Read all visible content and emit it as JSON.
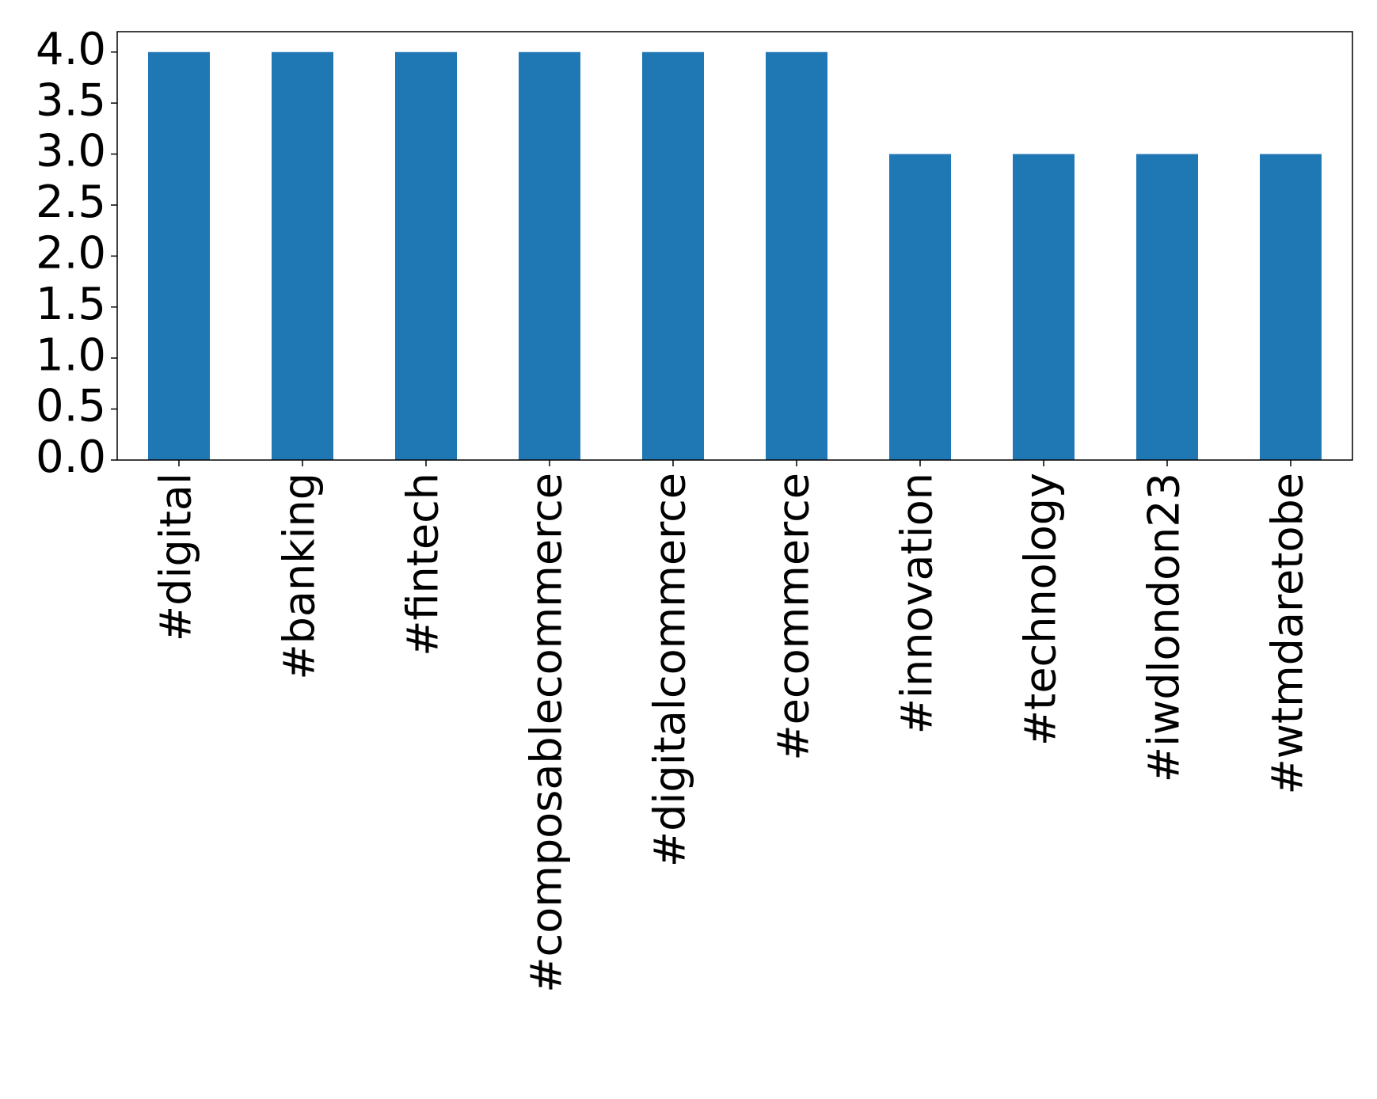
{
  "chart_data": {
    "type": "bar",
    "categories": [
      "#digital",
      "#banking",
      "#fintech",
      "#composablecommerce",
      "#digitalcommerce",
      "#ecommerce",
      "#innovation",
      "#technology",
      "#iwdlondon23",
      "#wtmdaretobe"
    ],
    "values": [
      4,
      4,
      4,
      4,
      4,
      4,
      3,
      3,
      3,
      3
    ],
    "color": "#1f77b4",
    "ylim": [
      0,
      4.2
    ],
    "yticks": [
      {
        "value": 0,
        "label": "0.0"
      },
      0.5,
      {
        "value": 1,
        "label": "1.0"
      },
      1.5,
      {
        "value": 2,
        "label": "2.0"
      },
      2.5,
      {
        "value": 3,
        "label": "3.0"
      },
      3.5,
      {
        "value": 4,
        "label": "4.0"
      }
    ],
    "grid": false
  }
}
